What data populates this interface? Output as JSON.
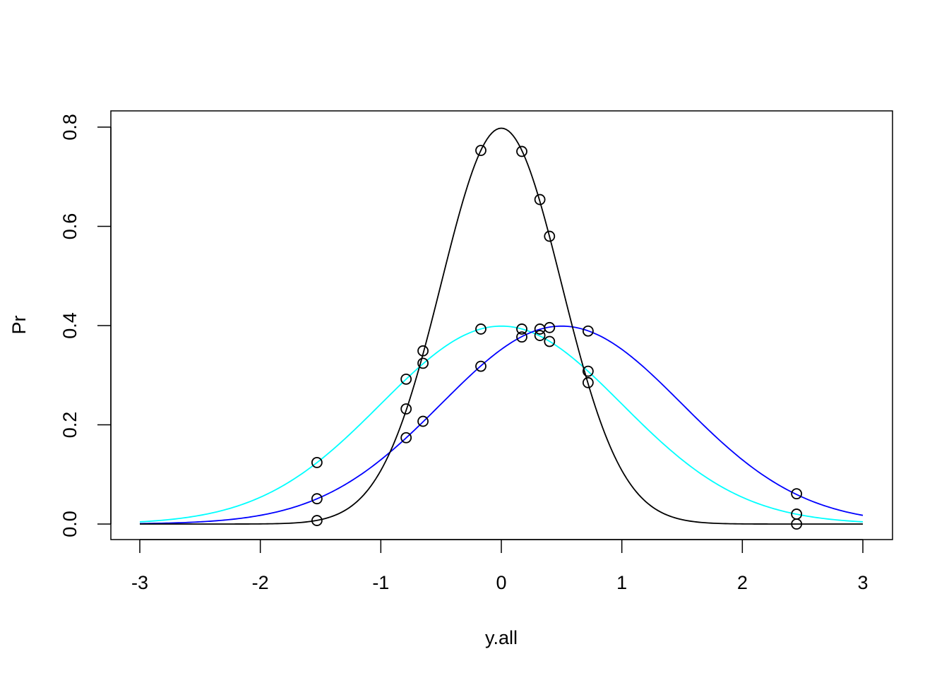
{
  "chart_data": {
    "type": "line",
    "xlabel": "y.all",
    "ylabel": "Pr",
    "xlim": [
      -3,
      3
    ],
    "ylim": [
      0,
      0.8
    ],
    "x_ticks": [
      "-3",
      "-2",
      "-1",
      "0",
      "1",
      "2",
      "3"
    ],
    "y_ticks": [
      "0.0",
      "0.2",
      "0.4",
      "0.6",
      "0.8"
    ],
    "grid": false,
    "legend": "none",
    "series": [
      {
        "color": "#000000",
        "distribution": {
          "mean": 0,
          "sd": 0.5
        }
      },
      {
        "color": "#00ffff",
        "distribution": {
          "mean": 0,
          "sd": 1
        }
      },
      {
        "color": "#0000ff",
        "distribution": {
          "mean": 0.5,
          "sd": 1
        }
      }
    ],
    "points": [
      {
        "x": -1.53,
        "y": 0.124
      },
      {
        "x": -1.53,
        "y": 0.051
      },
      {
        "x": -1.53,
        "y": 0.007
      },
      {
        "x": -0.79,
        "y": 0.292
      },
      {
        "x": -0.79,
        "y": 0.232
      },
      {
        "x": -0.79,
        "y": 0.174
      },
      {
        "x": -0.65,
        "y": 0.349
      },
      {
        "x": -0.65,
        "y": 0.324
      },
      {
        "x": -0.65,
        "y": 0.207
      },
      {
        "x": -0.17,
        "y": 0.753
      },
      {
        "x": -0.17,
        "y": 0.393
      },
      {
        "x": -0.17,
        "y": 0.318
      },
      {
        "x": 0.17,
        "y": 0.751
      },
      {
        "x": 0.17,
        "y": 0.393
      },
      {
        "x": 0.17,
        "y": 0.377
      },
      {
        "x": 0.32,
        "y": 0.654
      },
      {
        "x": 0.32,
        "y": 0.393
      },
      {
        "x": 0.32,
        "y": 0.38
      },
      {
        "x": 0.4,
        "y": 0.58
      },
      {
        "x": 0.4,
        "y": 0.396
      },
      {
        "x": 0.4,
        "y": 0.368
      },
      {
        "x": 0.72,
        "y": 0.389
      },
      {
        "x": 0.72,
        "y": 0.308
      },
      {
        "x": 0.72,
        "y": 0.285
      },
      {
        "x": 2.45,
        "y": 0.061
      },
      {
        "x": 2.45,
        "y": 0.02
      },
      {
        "x": 2.45,
        "y": 0.0
      }
    ]
  }
}
